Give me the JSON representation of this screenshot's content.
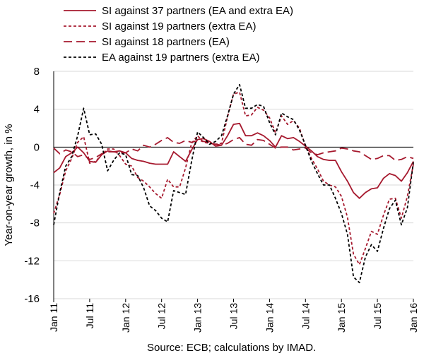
{
  "chart_data": {
    "type": "line",
    "title": "",
    "xlabel": "",
    "ylabel": "Year-on-year growth, in %",
    "ylim": [
      -16,
      8
    ],
    "yticks": [
      8,
      4,
      0,
      -4,
      -8,
      -12,
      -16
    ],
    "grid": true,
    "legend_position": "top",
    "x_tick_labels": [
      "Jan 11",
      "Jul 11",
      "Jan 12",
      "Jul 12",
      "Jan 13",
      "Jul 13",
      "Jan 14",
      "Jul 14",
      "Jan 15",
      "Jul 15",
      "Jan 16"
    ],
    "x": [
      "2011-01",
      "2011-02",
      "2011-03",
      "2011-04",
      "2011-05",
      "2011-06",
      "2011-07",
      "2011-08",
      "2011-09",
      "2011-10",
      "2011-11",
      "2011-12",
      "2012-01",
      "2012-02",
      "2012-03",
      "2012-04",
      "2012-05",
      "2012-06",
      "2012-07",
      "2012-08",
      "2012-09",
      "2012-10",
      "2012-11",
      "2012-12",
      "2013-01",
      "2013-02",
      "2013-03",
      "2013-04",
      "2013-05",
      "2013-06",
      "2013-07",
      "2013-08",
      "2013-09",
      "2013-10",
      "2013-11",
      "2013-12",
      "2014-01",
      "2014-02",
      "2014-03",
      "2014-04",
      "2014-05",
      "2014-06",
      "2014-07",
      "2014-08",
      "2014-09",
      "2014-10",
      "2014-11",
      "2014-12",
      "2015-01",
      "2015-02",
      "2015-03",
      "2015-04",
      "2015-05",
      "2015-06",
      "2015-07",
      "2015-08",
      "2015-09",
      "2015-10",
      "2015-11",
      "2015-12",
      "2016-01"
    ],
    "series": [
      {
        "name": "SI against 37 partners (EA and extra EA)",
        "color": "#a6192e",
        "dash": "solid",
        "values": [
          -2.7,
          -2.2,
          -1.0,
          -0.6,
          0.0,
          -0.6,
          -1.5,
          -1.6,
          -0.8,
          -0.4,
          -0.5,
          -0.4,
          -0.6,
          -1.2,
          -1.4,
          -1.5,
          -1.7,
          -1.8,
          -1.8,
          -1.8,
          -0.5,
          -1.0,
          -1.5,
          -0.3,
          0.8,
          0.9,
          0.6,
          0.1,
          0.2,
          1.2,
          2.4,
          2.5,
          1.2,
          1.2,
          1.5,
          1.2,
          0.7,
          0.0,
          1.2,
          0.9,
          1.0,
          0.6,
          0.1,
          -0.4,
          -1.0,
          -1.3,
          -1.4,
          -1.4,
          -2.6,
          -3.6,
          -4.8,
          -5.4,
          -4.8,
          -4.4,
          -4.3,
          -3.3,
          -2.8,
          -3.0,
          -3.6,
          -2.7,
          -1.5
        ]
      },
      {
        "name": "SI against 19 partners (extra EA)",
        "color": "#a6192e",
        "dash": "4,3",
        "values": [
          -7.0,
          -5.0,
          -2.5,
          -1.2,
          0.5,
          1.1,
          -1.7,
          -1.5,
          -0.8,
          -0.2,
          -0.2,
          -0.9,
          -1.8,
          -2.0,
          -3.2,
          -3.6,
          -4.2,
          -4.9,
          -5.4,
          -3.4,
          -4.2,
          -4.2,
          -2.2,
          0.4,
          1.2,
          0.5,
          0.4,
          0.3,
          0.4,
          3.2,
          5.6,
          5.8,
          3.3,
          3.4,
          4.2,
          3.9,
          3.1,
          1.5,
          3.3,
          2.4,
          2.8,
          2.0,
          0.1,
          -1.2,
          -2.3,
          -3.6,
          -4.0,
          -4.2,
          -5.2,
          -7.4,
          -11.3,
          -12.4,
          -10.7,
          -8.9,
          -9.2,
          -7.2,
          -5.5,
          -5.4,
          -7.5,
          -5.2,
          -1.8
        ]
      },
      {
        "name": "SI against 18 partners (EA)",
        "color": "#a6192e",
        "dash": "12,6",
        "values": [
          -0.1,
          -0.7,
          -0.3,
          -0.5,
          -1.0,
          -0.8,
          -1.3,
          -1.1,
          -0.7,
          -0.5,
          -0.5,
          -0.6,
          -0.6,
          -0.2,
          -0.4,
          0.2,
          0.0,
          0.3,
          0.7,
          1.0,
          0.5,
          0.4,
          0.7,
          0.5,
          0.7,
          0.6,
          0.5,
          0.3,
          0.2,
          0.4,
          0.8,
          1.0,
          0.3,
          0.2,
          0.8,
          0.7,
          0.3,
          -0.1,
          0.0,
          0.0,
          -0.3,
          -0.2,
          -0.1,
          -0.6,
          -0.8,
          -0.6,
          -0.5,
          -0.4,
          -0.1,
          -0.2,
          -0.4,
          -0.5,
          -0.9,
          -1.3,
          -1.2,
          -0.9,
          -0.9,
          -1.4,
          -1.3,
          -1.0,
          -1.2
        ]
      },
      {
        "name": "EA against 19 partners (extra EA)",
        "color": "#000000",
        "dash": "4,3",
        "values": [
          -8.2,
          -4.8,
          -2.0,
          -1.0,
          1.2,
          4.1,
          1.3,
          1.4,
          0.3,
          -2.5,
          -1.4,
          -0.6,
          -0.8,
          -2.9,
          -3.0,
          -4.3,
          -6.2,
          -6.7,
          -7.5,
          -7.9,
          -4.6,
          -4.8,
          -5.0,
          -1.5,
          1.6,
          1.0,
          0.3,
          0.6,
          1.2,
          3.3,
          5.6,
          6.6,
          4.1,
          4.1,
          4.5,
          4.3,
          2.6,
          1.3,
          3.6,
          3.2,
          2.9,
          1.8,
          0.2,
          -1.5,
          -2.8,
          -4.0,
          -4.0,
          -5.4,
          -7.0,
          -9.2,
          -13.7,
          -14.3,
          -11.6,
          -10.3,
          -11.0,
          -8.6,
          -6.5,
          -5.6,
          -8.2,
          -6.4,
          -1.6
        ]
      }
    ]
  },
  "source": "Source: ECB; calculations by IMAD."
}
